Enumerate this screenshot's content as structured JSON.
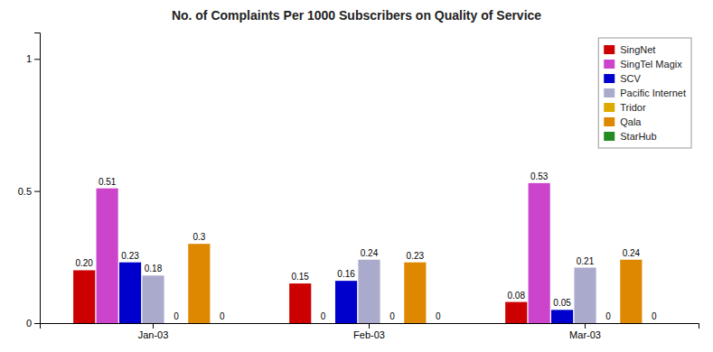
{
  "chart_data": {
    "type": "bar",
    "title": "No. of Complaints Per 1000 Subscribers on Quality of Service",
    "categories": [
      "Jan-03",
      "Feb-03",
      "Mar-03"
    ],
    "series": [
      {
        "name": "SingNet",
        "color": "#CC0000",
        "values": [
          0.2,
          0.15,
          0.08
        ],
        "value_labels": [
          "0.20",
          "0.15",
          "0.08"
        ]
      },
      {
        "name": "SingTel Magix",
        "color": "#CC44CC",
        "values": [
          0.51,
          0.0,
          0.53
        ],
        "value_labels": [
          "0.51",
          "0",
          "0.53"
        ]
      },
      {
        "name": "SCV",
        "color": "#0000CC",
        "values": [
          0.23,
          0.16,
          0.05
        ],
        "value_labels": [
          "0.23",
          "0.16",
          "0.05"
        ]
      },
      {
        "name": "Pacific Internet",
        "color": "#AAAACC",
        "values": [
          0.18,
          0.24,
          0.21
        ],
        "value_labels": [
          "0.18",
          "0.24",
          "0.21"
        ]
      },
      {
        "name": "Tridor",
        "color": "#DDAA00",
        "values": [
          0.0,
          0.0,
          0.0
        ],
        "value_labels": [
          "0",
          "0",
          "0"
        ]
      },
      {
        "name": "Qala",
        "color": "#DD8800",
        "values": [
          0.3,
          0.23,
          0.24
        ],
        "value_labels": [
          "0.3",
          "0.23",
          "0.24"
        ]
      },
      {
        "name": "StarHub",
        "color": "#228B22",
        "values": [
          0.0,
          0.0,
          0.0
        ],
        "value_labels": [
          "0",
          "0",
          "0"
        ]
      }
    ],
    "ylim": [
      0,
      1.1
    ],
    "yticks": [
      0,
      0.5,
      1
    ],
    "grid": false,
    "legend": "upper right",
    "data_labels": true
  }
}
